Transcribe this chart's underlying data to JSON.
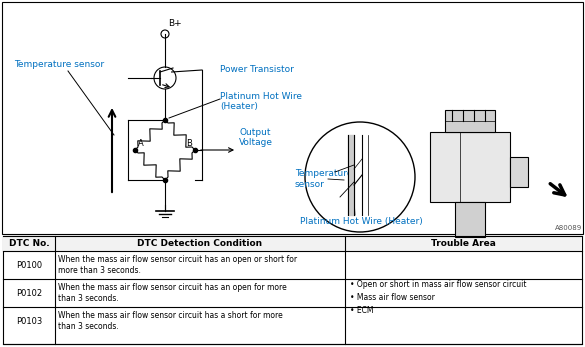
{
  "background_color": "#ffffff",
  "table_header": [
    "DTC No.",
    "DTC Detection Condition",
    "Trouble Area"
  ],
  "table_rows": [
    [
      "P0100",
      "When the mass air flow sensor circuit has an open or short for\nmore than 3 seconds.",
      ""
    ],
    [
      "P0102",
      "When the mass air flow sensor circuit has an open for more\nthan 3 seconds.",
      "• Open or short in mass air flow sensor circuit\n• Mass air flow sensor\n• ECM"
    ],
    [
      "P0103",
      "When the mass air flow sensor circuit has a short for more\nthan 3 seconds.",
      ""
    ]
  ],
  "labels": {
    "temp_sensor": "Temperature sensor",
    "power_transistor": "Power Transistor",
    "platinum_hot_wire": "Platinum Hot Wire\n(Heater)",
    "output_voltage": "Output\nVoltage",
    "b_plus": "B+",
    "node_a": "A",
    "node_b": "B",
    "temp_sensor2": "Temperature\nsensor",
    "platinum_hot_wire2": "Platinum Hot Wire (Heater)",
    "watermark": "A80089"
  },
  "label_color_blue": "#0070C0",
  "font_size_label": 6.5,
  "font_size_table": 6.0,
  "font_size_header": 6.5
}
